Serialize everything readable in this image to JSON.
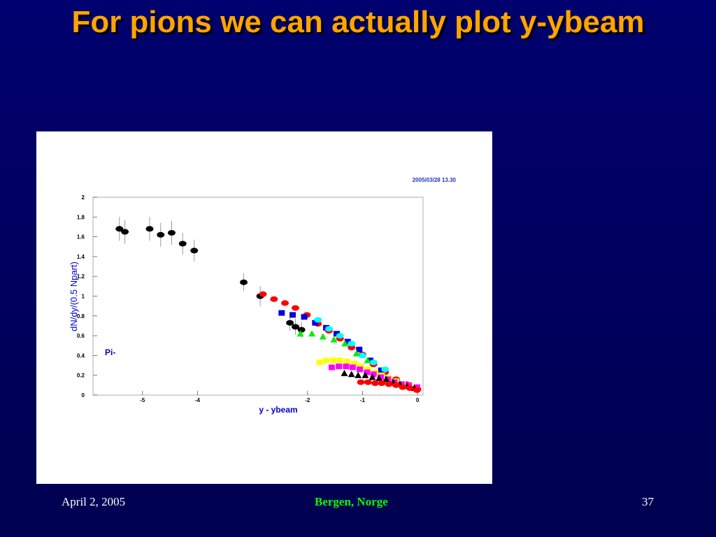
{
  "slide": {
    "title": "For pions we can actually plot y-ybeam",
    "footer_left": "April 2, 2005",
    "footer_center": "Bergen, Norge",
    "footer_right": "37"
  },
  "chart_data": {
    "type": "scatter",
    "timestamp": "2005/03/28  13.30",
    "xlabel": "y - ybeam",
    "ylabel": "dN/dy/(0.5 Npart)",
    "annotation": "Pi-",
    "xlim": [
      -5.9,
      0.1
    ],
    "ylim": [
      0,
      2
    ],
    "xticks": [
      -5,
      -4,
      -2,
      -1,
      0
    ],
    "yticks": [
      0,
      0.2,
      0.4,
      0.6,
      0.8,
      1,
      1.2,
      1.4,
      1.6,
      1.8,
      2
    ],
    "series": [
      {
        "color": "#000000",
        "marker": "circle",
        "x": [
          -5.42,
          -5.32,
          -4.87,
          -4.67,
          -4.47,
          -4.27,
          -4.06,
          -3.16,
          -2.86,
          -2.32,
          -2.22,
          -2.11
        ],
        "values": [
          1.68,
          1.65,
          1.68,
          1.62,
          1.64,
          1.53,
          1.46,
          1.14,
          1.0,
          0.73,
          0.69,
          0.66
        ],
        "errors": [
          0.12,
          0.12,
          0.12,
          0.12,
          0.12,
          0.11,
          0.11,
          0.09,
          0.1,
          0.08,
          0.08,
          0.08
        ]
      },
      {
        "color": "#ff0000",
        "marker": "circle",
        "x": [
          -2.81,
          -2.61,
          -2.41,
          -2.22,
          -2.01,
          -1.81,
          -1.61,
          -1.41,
          -1.2,
          -1.0,
          -0.8,
          -0.59,
          -0.39,
          -0.2,
          0
        ],
        "values": [
          1.02,
          0.97,
          0.93,
          0.88,
          0.81,
          0.72,
          0.65,
          0.57,
          0.48,
          0.41,
          0.31,
          0.23,
          0.16,
          0.11,
          0.06
        ]
      },
      {
        "color": "#0000dd",
        "marker": "square",
        "x": [
          -2.47,
          -2.27,
          -2.06,
          -1.86,
          -1.66,
          -1.47,
          -1.27,
          -1.06,
          -0.86,
          -0.66
        ],
        "values": [
          0.83,
          0.81,
          0.79,
          0.73,
          0.68,
          0.62,
          0.54,
          0.46,
          0.35,
          0.25
        ]
      },
      {
        "color": "#00ffff",
        "marker": "circle",
        "x": [
          -1.81,
          -1.61,
          -1.41,
          -1.2,
          -1.0,
          -0.8,
          -0.59
        ],
        "values": [
          0.76,
          0.67,
          0.6,
          0.52,
          0.4,
          0.33,
          0.26
        ]
      },
      {
        "color": "#00ee00",
        "marker": "triangle",
        "x": [
          -2.13,
          -1.92,
          -1.72,
          -1.52,
          -1.32,
          -1.11,
          -0.91
        ],
        "values": [
          0.62,
          0.62,
          0.59,
          0.56,
          0.52,
          0.42,
          0.35
        ]
      },
      {
        "color": "#ffff00",
        "marker": "square",
        "x": [
          -1.78,
          -1.66,
          -1.53,
          -1.41,
          -1.28,
          -1.15,
          -1.03,
          -0.9,
          -0.77,
          -0.65,
          -0.52,
          -0.39,
          -0.27,
          -0.14,
          -0.01
        ],
        "values": [
          0.33,
          0.35,
          0.35,
          0.35,
          0.34,
          0.32,
          0.29,
          0.26,
          0.23,
          0.2,
          0.17,
          0.14,
          0.11,
          0.1,
          0.08
        ]
      },
      {
        "color": "#ff00ff",
        "marker": "square",
        "x": [
          -1.56,
          -1.43,
          -1.3,
          -1.18,
          -1.05,
          -0.92,
          -0.8,
          -0.67,
          -0.54,
          -0.42,
          -0.29,
          -0.16,
          -0.01
        ],
        "values": [
          0.28,
          0.29,
          0.29,
          0.28,
          0.26,
          0.23,
          0.21,
          0.18,
          0.16,
          0.13,
          0.11,
          0.1,
          0.08
        ]
      },
      {
        "color": "#000000",
        "marker": "triangle",
        "x": [
          -1.33,
          -1.2,
          -1.08,
          -0.95,
          -0.82,
          -0.7,
          -0.57,
          -0.44,
          -0.32,
          -0.19,
          -0.06
        ],
        "values": [
          0.22,
          0.21,
          0.2,
          0.2,
          0.18,
          0.17,
          0.16,
          0.13,
          0.11,
          0.09,
          0.07
        ]
      },
      {
        "color": "#ff0000",
        "marker": "circle",
        "x": [
          -1.03,
          -0.9,
          -0.77,
          -0.65,
          -0.52,
          -0.39,
          -0.27,
          -0.14,
          -0.01
        ],
        "values": [
          0.13,
          0.13,
          0.12,
          0.12,
          0.11,
          0.1,
          0.08,
          0.07,
          0.05
        ]
      }
    ]
  }
}
